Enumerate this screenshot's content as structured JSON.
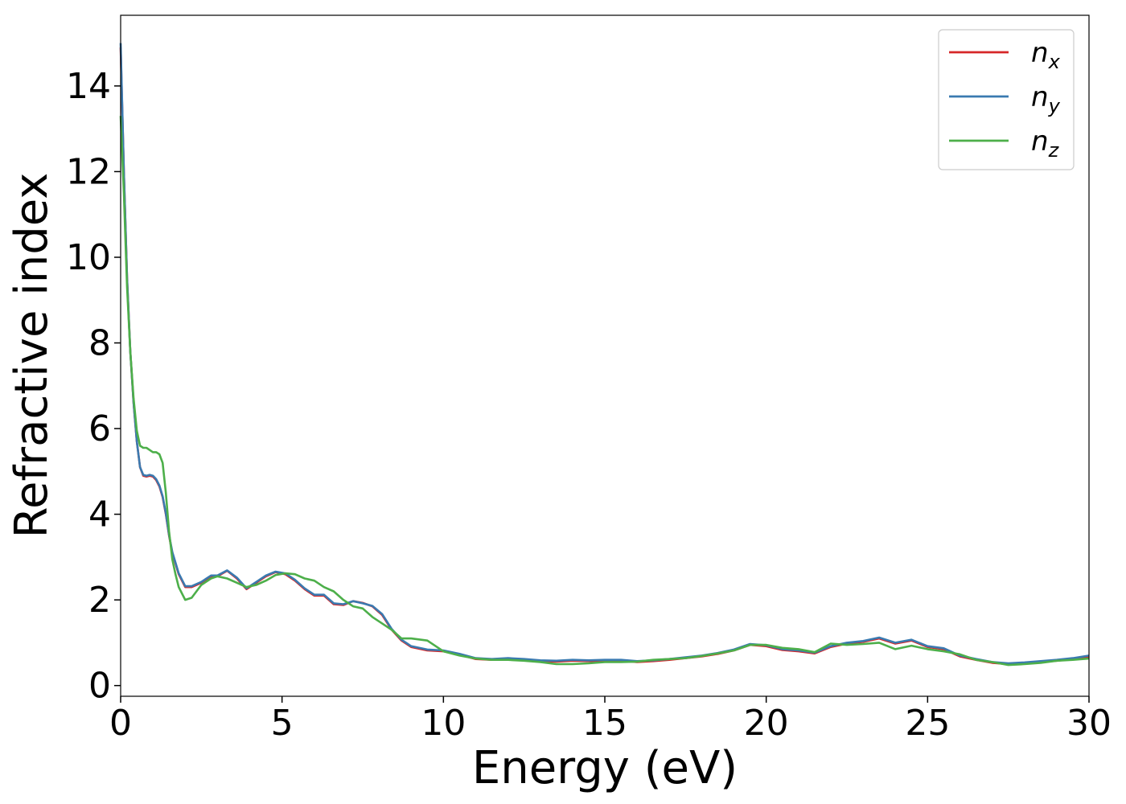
{
  "chart_data": {
    "type": "line",
    "title": "",
    "xlabel": "Energy (eV)",
    "ylabel": "Refractive index",
    "xlim": [
      0,
      30
    ],
    "ylim": [
      -0.25,
      15.65
    ],
    "xticks": [
      0,
      5,
      10,
      15,
      20,
      25,
      30
    ],
    "xtick_labels": [
      "0",
      "5",
      "10",
      "15",
      "20",
      "25",
      "30"
    ],
    "yticks": [
      0,
      2,
      4,
      6,
      8,
      10,
      12,
      14
    ],
    "ytick_labels": [
      "0",
      "2",
      "4",
      "6",
      "8",
      "10",
      "12",
      "14"
    ],
    "grid": false,
    "legend_position": "top-right",
    "series": [
      {
        "name": "n_x",
        "label_base": "n",
        "label_sub": "x",
        "color": "#d62728",
        "x": [
          0,
          0.1,
          0.2,
          0.3,
          0.4,
          0.5,
          0.6,
          0.7,
          0.8,
          0.9,
          1.0,
          1.1,
          1.2,
          1.3,
          1.4,
          1.5,
          1.6,
          1.7,
          1.8,
          2.0,
          2.2,
          2.5,
          2.8,
          3.0,
          3.3,
          3.6,
          3.9,
          4.2,
          4.5,
          4.8,
          5.1,
          5.4,
          5.7,
          6.0,
          6.3,
          6.6,
          6.9,
          7.2,
          7.5,
          7.8,
          8.1,
          8.4,
          8.7,
          9.0,
          9.5,
          10.0,
          10.5,
          11.0,
          11.5,
          12.0,
          12.5,
          13.0,
          13.5,
          14.0,
          14.5,
          15.0,
          15.5,
          16.0,
          16.5,
          17.0,
          17.5,
          18.0,
          18.5,
          19.0,
          19.5,
          20.0,
          20.5,
          21.0,
          21.5,
          22.0,
          22.5,
          23.0,
          23.5,
          24.0,
          24.5,
          25.0,
          25.5,
          26.0,
          26.5,
          27.0,
          27.5,
          28.0,
          28.5,
          29.0,
          29.5,
          30.0
        ],
        "y": [
          14.9,
          12.0,
          9.5,
          7.8,
          6.6,
          5.7,
          5.1,
          4.9,
          4.88,
          4.9,
          4.88,
          4.8,
          4.65,
          4.4,
          4.0,
          3.5,
          3.1,
          2.85,
          2.6,
          2.3,
          2.3,
          2.4,
          2.55,
          2.55,
          2.68,
          2.5,
          2.25,
          2.4,
          2.55,
          2.65,
          2.6,
          2.45,
          2.25,
          2.1,
          2.1,
          1.9,
          1.88,
          1.97,
          1.93,
          1.85,
          1.65,
          1.3,
          1.05,
          0.9,
          0.82,
          0.8,
          0.72,
          0.62,
          0.6,
          0.62,
          0.6,
          0.57,
          0.56,
          0.58,
          0.57,
          0.58,
          0.58,
          0.55,
          0.57,
          0.6,
          0.64,
          0.68,
          0.74,
          0.82,
          0.95,
          0.92,
          0.83,
          0.8,
          0.75,
          0.9,
          0.98,
          1.02,
          1.1,
          0.98,
          1.05,
          0.9,
          0.85,
          0.68,
          0.6,
          0.53,
          0.5,
          0.52,
          0.55,
          0.58,
          0.62,
          0.68
        ]
      },
      {
        "name": "n_y",
        "label_base": "n",
        "label_sub": "y",
        "color": "#3a7ab0",
        "x": [
          0,
          0.1,
          0.2,
          0.3,
          0.4,
          0.5,
          0.6,
          0.7,
          0.8,
          0.9,
          1.0,
          1.1,
          1.2,
          1.3,
          1.4,
          1.5,
          1.6,
          1.7,
          1.8,
          2.0,
          2.2,
          2.5,
          2.8,
          3.0,
          3.3,
          3.6,
          3.9,
          4.2,
          4.5,
          4.8,
          5.1,
          5.4,
          5.7,
          6.0,
          6.3,
          6.6,
          6.9,
          7.2,
          7.5,
          7.8,
          8.1,
          8.4,
          8.7,
          9.0,
          9.5,
          10.0,
          10.5,
          11.0,
          11.5,
          12.0,
          12.5,
          13.0,
          13.5,
          14.0,
          14.5,
          15.0,
          15.5,
          16.0,
          16.5,
          17.0,
          17.5,
          18.0,
          18.5,
          19.0,
          19.5,
          20.0,
          20.5,
          21.0,
          21.5,
          22.0,
          22.5,
          23.0,
          23.5,
          24.0,
          24.5,
          25.0,
          25.5,
          26.0,
          26.5,
          27.0,
          27.5,
          28.0,
          28.5,
          29.0,
          29.5,
          30.0
        ],
        "y": [
          15.0,
          12.0,
          9.5,
          7.8,
          6.6,
          5.7,
          5.1,
          4.92,
          4.9,
          4.92,
          4.9,
          4.82,
          4.67,
          4.42,
          4.02,
          3.52,
          3.12,
          2.87,
          2.62,
          2.32,
          2.32,
          2.42,
          2.57,
          2.57,
          2.69,
          2.52,
          2.27,
          2.42,
          2.57,
          2.66,
          2.62,
          2.47,
          2.27,
          2.12,
          2.12,
          1.92,
          1.9,
          1.97,
          1.92,
          1.86,
          1.67,
          1.32,
          1.07,
          0.92,
          0.84,
          0.82,
          0.74,
          0.64,
          0.62,
          0.64,
          0.62,
          0.59,
          0.58,
          0.6,
          0.59,
          0.6,
          0.6,
          0.57,
          0.59,
          0.62,
          0.66,
          0.7,
          0.76,
          0.84,
          0.97,
          0.94,
          0.85,
          0.82,
          0.77,
          0.92,
          1.0,
          1.04,
          1.12,
          1.0,
          1.07,
          0.92,
          0.87,
          0.7,
          0.62,
          0.55,
          0.52,
          0.54,
          0.57,
          0.6,
          0.64,
          0.7
        ]
      },
      {
        "name": "n_z",
        "label_base": "n",
        "label_sub": "z",
        "color": "#4daf4a",
        "x": [
          0,
          0.1,
          0.2,
          0.3,
          0.4,
          0.5,
          0.6,
          0.7,
          0.8,
          0.9,
          1.0,
          1.1,
          1.2,
          1.3,
          1.4,
          1.5,
          1.6,
          1.7,
          1.8,
          2.0,
          2.2,
          2.5,
          2.8,
          3.0,
          3.3,
          3.6,
          3.9,
          4.2,
          4.5,
          4.8,
          5.1,
          5.4,
          5.7,
          6.0,
          6.3,
          6.6,
          6.9,
          7.2,
          7.5,
          7.8,
          8.1,
          8.4,
          8.7,
          9.0,
          9.5,
          10.0,
          10.5,
          11.0,
          11.5,
          12.0,
          12.5,
          13.0,
          13.5,
          14.0,
          14.5,
          15.0,
          15.5,
          16.0,
          16.5,
          17.0,
          17.5,
          18.0,
          18.5,
          19.0,
          19.5,
          20.0,
          20.5,
          21.0,
          21.5,
          22.0,
          22.5,
          23.0,
          23.5,
          24.0,
          24.5,
          25.0,
          25.5,
          26.0,
          26.5,
          27.0,
          27.5,
          28.0,
          28.5,
          29.0,
          29.5,
          30.0
        ],
        "y": [
          13.3,
          11.5,
          9.3,
          7.8,
          6.7,
          5.95,
          5.6,
          5.55,
          5.55,
          5.5,
          5.45,
          5.45,
          5.4,
          5.2,
          4.5,
          3.6,
          2.95,
          2.6,
          2.3,
          2.0,
          2.05,
          2.35,
          2.5,
          2.55,
          2.5,
          2.4,
          2.3,
          2.35,
          2.45,
          2.58,
          2.62,
          2.6,
          2.5,
          2.45,
          2.3,
          2.2,
          2.0,
          1.85,
          1.8,
          1.6,
          1.45,
          1.3,
          1.1,
          1.1,
          1.05,
          0.8,
          0.7,
          0.63,
          0.6,
          0.6,
          0.58,
          0.55,
          0.5,
          0.5,
          0.52,
          0.55,
          0.55,
          0.56,
          0.6,
          0.62,
          0.64,
          0.69,
          0.75,
          0.82,
          0.95,
          0.95,
          0.88,
          0.85,
          0.78,
          0.98,
          0.95,
          0.97,
          1.0,
          0.85,
          0.93,
          0.85,
          0.8,
          0.73,
          0.6,
          0.55,
          0.48,
          0.5,
          0.53,
          0.58,
          0.6,
          0.63
        ]
      }
    ]
  }
}
